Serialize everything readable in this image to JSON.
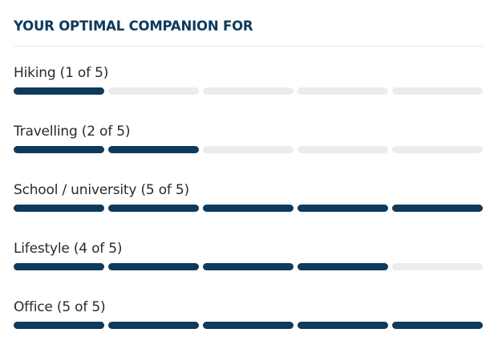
{
  "heading": "YOUR OPTIMAL COMPANION FOR",
  "colors": {
    "filled": "#0e3a5c",
    "empty": "#ececec"
  },
  "ratings": [
    {
      "label": "Hiking",
      "count_text": "(1 of 5)",
      "value": 1,
      "max": 5
    },
    {
      "label": "Travelling",
      "count_text": "(2 of 5)",
      "value": 2,
      "max": 5
    },
    {
      "label": "School / university",
      "count_text": "(5 of 5)",
      "value": 5,
      "max": 5
    },
    {
      "label": "Lifestyle",
      "count_text": "(4 of 5)",
      "value": 4,
      "max": 5
    },
    {
      "label": "Office",
      "count_text": "(5 of 5)",
      "value": 5,
      "max": 5
    }
  ]
}
